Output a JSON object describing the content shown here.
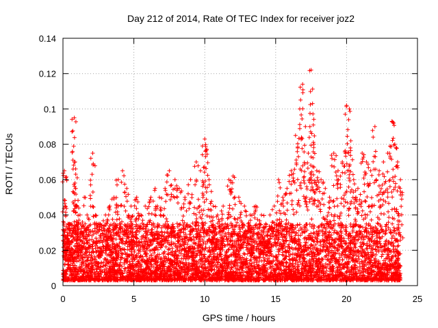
{
  "chart_data": {
    "type": "scatter",
    "title": "Day 212 of 2014, Rate Of TEC Index for receiver joz2",
    "xlabel": "GPS time / hours",
    "ylabel": "ROTI / TECUs",
    "xlim": [
      0,
      25
    ],
    "ylim": [
      0,
      0.14
    ],
    "xticks": [
      0,
      5,
      10,
      15,
      20,
      25
    ],
    "yticks": [
      0,
      0.02,
      0.04,
      0.06,
      0.08,
      0.1,
      0.12,
      0.14
    ],
    "xtick_labels": [
      "0",
      "5",
      "10",
      "15",
      "20",
      "25"
    ],
    "ytick_labels": [
      "0",
      "0.02",
      "0.04",
      "0.06",
      "0.08",
      "0.1",
      "0.12",
      "0.14"
    ],
    "grid": true,
    "marker": "+",
    "color": "#ff0000",
    "series": [
      {
        "name": "ROTI",
        "x": [
          0.1,
          0.15,
          0.3,
          0.35,
          0.5,
          0.8,
          0.85,
          0.9,
          1.0,
          1.2,
          1.5,
          1.7,
          2.1,
          2.3,
          2.6,
          3.0,
          3.3,
          3.6,
          3.9,
          4.2,
          4.5,
          4.8,
          5.2,
          5.5,
          5.8,
          6.2,
          6.5,
          6.8,
          7.2,
          7.5,
          7.9,
          8.2,
          8.6,
          9.0,
          9.4,
          9.7,
          10.0,
          10.05,
          10.3,
          10.6,
          10.9,
          11.3,
          11.7,
          12.0,
          12.4,
          12.8,
          13.2,
          13.6,
          14.0,
          14.3,
          14.6,
          14.9,
          15.2,
          15.5,
          15.8,
          16.1,
          16.4,
          16.7,
          16.9,
          17.1,
          17.3,
          17.5,
          17.6,
          17.7,
          17.9,
          18.2,
          18.5,
          18.8,
          19.1,
          19.4,
          19.7,
          20.0,
          20.2,
          20.3,
          20.5,
          20.8,
          21.1,
          21.4,
          21.7,
          22.0,
          22.3,
          22.6,
          22.9,
          23.2,
          23.4,
          23.6,
          23.8
        ],
        "y": [
          0.065,
          0.045,
          0.03,
          0.035,
          0.02,
          0.095,
          0.07,
          0.055,
          0.045,
          0.04,
          0.05,
          0.04,
          0.075,
          0.04,
          0.035,
          0.04,
          0.045,
          0.05,
          0.06,
          0.065,
          0.055,
          0.045,
          0.05,
          0.04,
          0.045,
          0.05,
          0.055,
          0.05,
          0.055,
          0.065,
          0.06,
          0.055,
          0.05,
          0.06,
          0.07,
          0.065,
          0.083,
          0.076,
          0.06,
          0.045,
          0.04,
          0.045,
          0.06,
          0.062,
          0.05,
          0.045,
          0.04,
          0.045,
          0.04,
          0.035,
          0.04,
          0.045,
          0.06,
          0.05,
          0.055,
          0.065,
          0.085,
          0.1,
          0.114,
          0.09,
          0.075,
          0.122,
          0.103,
          0.08,
          0.065,
          0.06,
          0.055,
          0.05,
          0.075,
          0.065,
          0.07,
          0.102,
          0.1,
          0.082,
          0.06,
          0.055,
          0.075,
          0.07,
          0.065,
          0.09,
          0.065,
          0.07,
          0.075,
          0.093,
          0.08,
          0.07,
          0.06
        ]
      }
    ],
    "dense_band": {
      "note": "dense baseline band of points between the x range and y range below",
      "x_range": [
        0,
        23.8
      ],
      "y_range": [
        0.003,
        0.035
      ]
    }
  }
}
